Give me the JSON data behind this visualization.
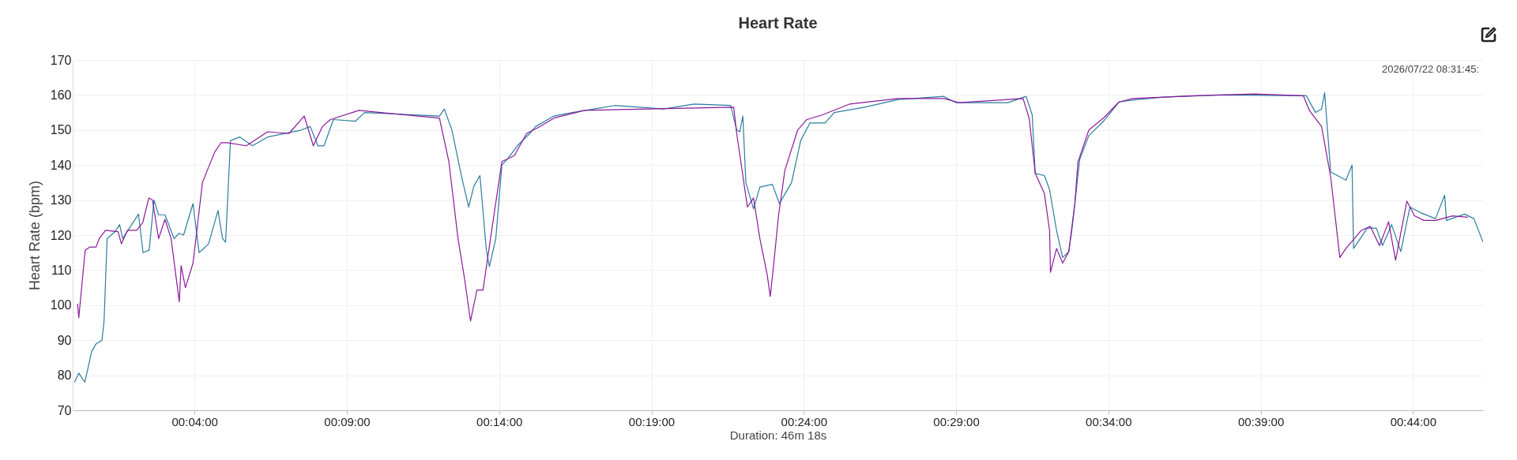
{
  "chart_data": {
    "type": "line",
    "title": "Heart Rate",
    "xlabel": "Duration: 46m 18s",
    "ylabel": "Heart Rate (bpm)",
    "annotations": [
      "2026/07/22 08:31:45:"
    ],
    "xlim": [
      0,
      46.3
    ],
    "ylim": [
      70,
      170
    ],
    "xticks": [
      {
        "value": 4,
        "label": "00:04:00"
      },
      {
        "value": 9,
        "label": "00:09:00"
      },
      {
        "value": 14,
        "label": "00:14:00"
      },
      {
        "value": 19,
        "label": "00:19:00"
      },
      {
        "value": 24,
        "label": "00:24:00"
      },
      {
        "value": 29,
        "label": "00:29:00"
      },
      {
        "value": 34,
        "label": "00:34:00"
      },
      {
        "value": 39,
        "label": "00:39:00"
      },
      {
        "value": 44,
        "label": "00:44:00"
      }
    ],
    "yticks": [
      70,
      80,
      90,
      100,
      110,
      120,
      130,
      140,
      150,
      160,
      170
    ],
    "grid": true,
    "line_style": "solid",
    "marker": "none",
    "series": [
      {
        "color": "#2b7d9e",
        "x": [
          0.06,
          0.2,
          0.4,
          0.62,
          0.77,
          0.96,
          1.03,
          1.13,
          1.39,
          1.54,
          1.64,
          2.16,
          2.31,
          2.51,
          2.67,
          2.82,
          3.03,
          3.33,
          3.49,
          3.64,
          3.95,
          4.15,
          4.46,
          4.77,
          4.92,
          5.02,
          5.18,
          5.49,
          5.9,
          6.4,
          7.5,
          7.8,
          8.05,
          8.25,
          8.56,
          9.28,
          9.58,
          12.04,
          12.2,
          12.45,
          12.76,
          13.0,
          13.17,
          13.37,
          13.58,
          13.68,
          13.89,
          14.09,
          14.3,
          14.6,
          15.0,
          15.2,
          15.8,
          16.4,
          17.8,
          19.4,
          20.4,
          21.6,
          21.8,
          21.9,
          22.0,
          22.1,
          22.35,
          22.56,
          22.97,
          23.2,
          23.6,
          23.9,
          24.2,
          24.7,
          25.0,
          26.0,
          27.1,
          28.6,
          29.0,
          30.7,
          31.3,
          31.5,
          31.6,
          31.9,
          32.07,
          32.3,
          32.5,
          32.7,
          32.8,
          33.06,
          33.36,
          33.85,
          34.35,
          34.84,
          35.8,
          37.8,
          40.5,
          40.8,
          41.0,
          41.1,
          41.3,
          41.8,
          42.0,
          42.05,
          42.5,
          42.8,
          43.0,
          43.3,
          43.6,
          43.9,
          44.25,
          44.74,
          45.04,
          45.1,
          45.7,
          46.0,
          46.3
        ],
        "values": [
          78,
          80.6,
          78,
          86.7,
          89,
          90,
          95.5,
          119,
          121,
          123,
          119,
          126,
          115,
          115.7,
          130,
          125.8,
          125.8,
          119,
          120.5,
          120,
          129,
          115,
          117.5,
          127,
          119,
          118,
          147,
          148,
          145.5,
          148,
          150,
          151,
          145.5,
          145.5,
          153,
          152.5,
          155,
          154,
          156,
          150,
          137,
          128,
          134,
          137,
          115.7,
          111,
          119,
          140,
          142,
          145.5,
          149,
          151,
          154,
          155,
          157,
          156,
          157.4,
          157,
          150,
          149.5,
          154,
          135,
          127.5,
          133.7,
          134.5,
          129,
          135,
          147,
          152,
          152,
          155,
          156.5,
          158.7,
          159.6,
          157.8,
          157.8,
          159.6,
          154.3,
          137.6,
          137,
          133,
          121.3,
          113.6,
          115.3,
          121.3,
          141.6,
          148.4,
          152.6,
          158,
          158.6,
          159.4,
          160,
          159.8,
          155,
          156,
          160.7,
          138,
          135.7,
          140,
          116.2,
          122,
          122,
          117,
          123,
          115.3,
          128,
          126.4,
          124.7,
          131.4,
          124.2,
          126,
          124.7,
          118
        ]
      },
      {
        "color": "#8b1a9b",
        "x": [
          0.16,
          0.2,
          0.41,
          0.57,
          0.77,
          0.87,
          1.08,
          1.49,
          1.6,
          1.8,
          2.1,
          2.3,
          2.5,
          2.62,
          2.82,
          3.03,
          3.23,
          3.5,
          3.56,
          3.7,
          3.95,
          4.26,
          4.46,
          4.67,
          4.87,
          5.08,
          5.7,
          6.4,
          7.1,
          7.6,
          7.9,
          8.2,
          8.46,
          9.4,
          12.04,
          12.35,
          12.65,
          12.86,
          13.06,
          13.27,
          13.47,
          13.78,
          14.09,
          14.5,
          14.9,
          15.3,
          15.8,
          16.8,
          18.9,
          21.7,
          21.8,
          22.15,
          22.35,
          22.56,
          22.8,
          22.9,
          23.0,
          23.17,
          23.38,
          23.8,
          24.1,
          24.6,
          25.5,
          27.1,
          28.6,
          29.1,
          31.2,
          31.4,
          31.6,
          31.9,
          32.07,
          32.1,
          32.3,
          32.5,
          32.7,
          32.9,
          33.0,
          33.36,
          33.85,
          34.35,
          34.8,
          36.8,
          38.8,
          40.4,
          40.6,
          41.0,
          41.3,
          41.6,
          41.8,
          42.3,
          42.6,
          42.9,
          43.2,
          43.43,
          43.8,
          44.05,
          44.36,
          44.74,
          45.3,
          45.8
        ],
        "values": [
          100.4,
          96.4,
          115.7,
          116.6,
          116.6,
          119,
          121.4,
          121,
          117.5,
          121.4,
          121.4,
          123.6,
          130.6,
          130,
          119,
          124.5,
          119,
          101,
          111.3,
          105,
          112,
          135,
          139.4,
          143.8,
          146.4,
          146.4,
          145.5,
          149.5,
          149,
          154,
          145.5,
          151,
          153,
          155.6,
          153.4,
          141,
          119,
          107.8,
          95.5,
          104.3,
          104.3,
          122.8,
          141,
          142.7,
          149,
          150.8,
          153.4,
          155.6,
          156,
          156.5,
          149,
          128,
          130.6,
          119,
          108.7,
          102.5,
          110.5,
          125.4,
          138.5,
          150,
          153,
          154.3,
          157.4,
          159,
          159,
          157.8,
          159,
          153.4,
          137.6,
          131.9,
          121.3,
          109.4,
          116.2,
          112,
          115.3,
          129,
          140.8,
          150,
          153.5,
          158,
          159,
          159.8,
          160.3,
          159.8,
          155.6,
          151,
          136.5,
          113.6,
          116.2,
          121.3,
          122.5,
          117,
          123.8,
          112.8,
          129.7,
          125.5,
          124.2,
          124.2,
          125.5,
          125.1
        ]
      }
    ]
  }
}
